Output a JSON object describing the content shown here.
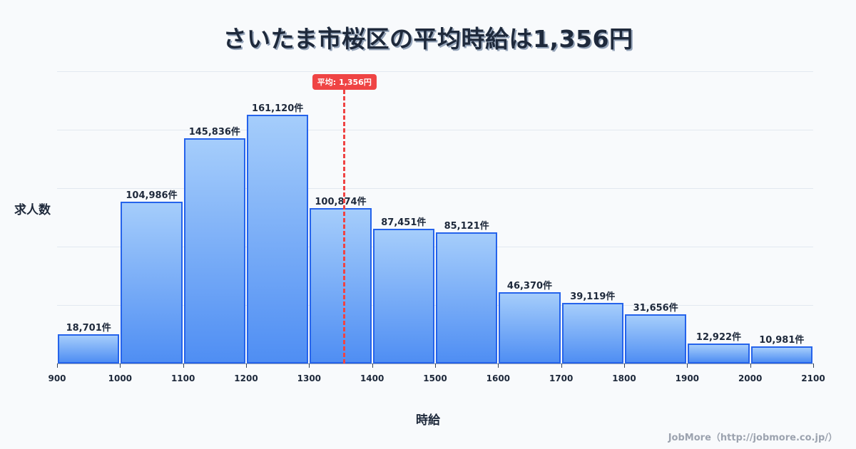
{
  "header": {
    "title": "さいたま市桜区の平均時給は1,356円"
  },
  "axis": {
    "ylabel": "求人数",
    "xlabel": "時給"
  },
  "mean": {
    "label": "平均: 1,356円",
    "value": 1356,
    "color": "#ef4444"
  },
  "footer": {
    "credit": "JobMore（http://jobmore.co.jp/）"
  },
  "colors": {
    "bar_fill_top": "#a5cdfb",
    "bar_fill_bottom": "#4f8ef3",
    "bar_border": "#2563eb",
    "mean_line": "#ef4444"
  },
  "chart_data": {
    "type": "bar",
    "title": "さいたま市桜区の平均時給は1,356円",
    "xlabel": "時給",
    "ylabel": "求人数",
    "bin_edges": [
      900,
      1000,
      1100,
      1200,
      1300,
      1400,
      1500,
      1600,
      1700,
      1800,
      1900,
      2000,
      2100
    ],
    "categories": [
      "900-1000",
      "1000-1100",
      "1100-1200",
      "1200-1300",
      "1300-1400",
      "1400-1500",
      "1500-1600",
      "1600-1700",
      "1700-1800",
      "1800-1900",
      "1900-2000",
      "2000-2100"
    ],
    "values": [
      18701,
      104986,
      145836,
      161120,
      100874,
      87451,
      85121,
      46370,
      39119,
      31656,
      12922,
      10981
    ],
    "value_labels": [
      "18,701件",
      "104,986件",
      "145,836件",
      "161,120件",
      "100,874件",
      "87,451件",
      "85,121件",
      "46,370件",
      "39,119件",
      "31,656件",
      "12,922件",
      "10,981件"
    ],
    "xticks": [
      "900",
      "1000",
      "1100",
      "1200",
      "1300",
      "1400",
      "1500",
      "1600",
      "1700",
      "1800",
      "1900",
      "2000",
      "2100"
    ],
    "xlim": [
      900,
      2100
    ],
    "ylim": [
      0,
      189300
    ],
    "grid": true,
    "annotations": [
      {
        "type": "vline",
        "x": 1356,
        "label": "平均: 1,356円",
        "style": "dashed",
        "color": "#ef4444"
      }
    ],
    "legend": null
  }
}
